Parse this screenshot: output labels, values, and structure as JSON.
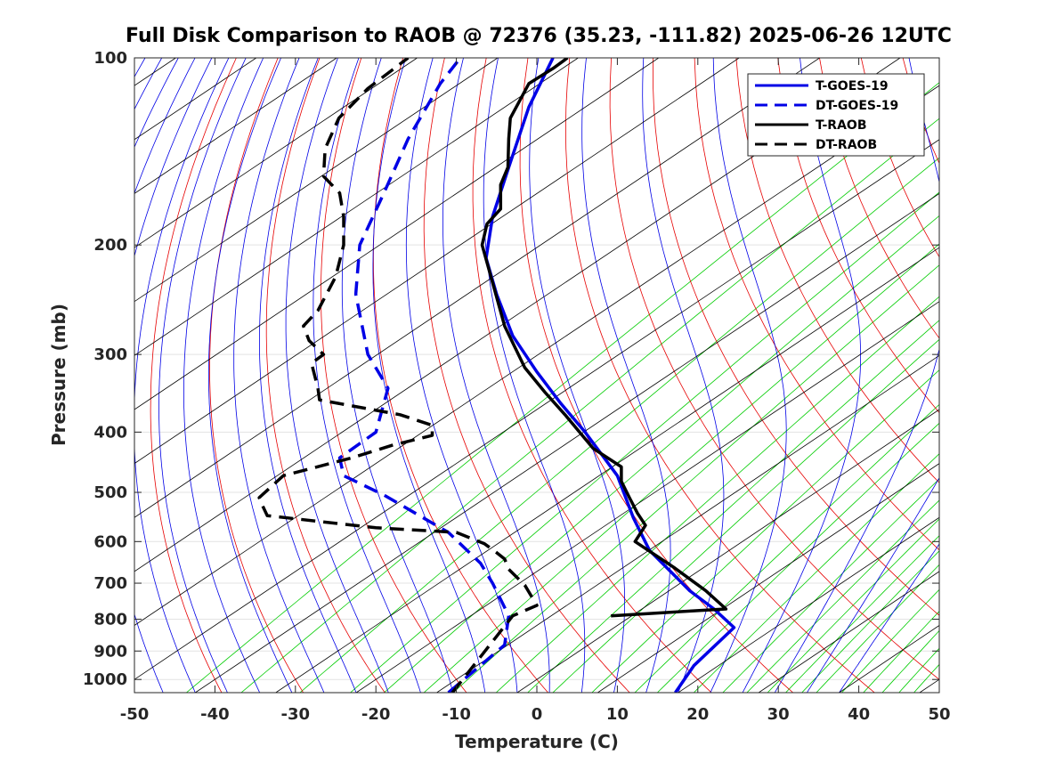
{
  "chart_data": {
    "type": "line",
    "title": "Full Disk Comparison to RAOB @ 72376 (35.23, -111.82) 2025-06-26 12UTC",
    "xlabel": "Temperature (C)",
    "ylabel": "Pressure (mb)",
    "xlim": [
      -50,
      50
    ],
    "ylim": [
      1050,
      100
    ],
    "y_scale": "log",
    "grid": true,
    "legend_position": "top-right",
    "x_ticks": [
      -50,
      -40,
      -30,
      -20,
      -10,
      0,
      10,
      20,
      30,
      40,
      50
    ],
    "y_ticks": [
      100,
      200,
      300,
      400,
      500,
      600,
      700,
      800,
      900,
      1000
    ],
    "colors": {
      "isotherm": "#000000",
      "dry_adiabat": "#e60000",
      "moist_adiabat": "#0000e6",
      "mixing_ratio": "#00cc00",
      "goes": "#0000e6",
      "raob": "#000000"
    },
    "series": [
      {
        "name": "T-GOES-19",
        "color": "#0000e6",
        "dash": "solid",
        "points": [
          [
            17.2,
            1050
          ],
          [
            19.5,
            950
          ],
          [
            24.5,
            825
          ],
          [
            22,
            770
          ],
          [
            19,
            720
          ],
          [
            14,
            620
          ],
          [
            12,
            550
          ],
          [
            10,
            470
          ],
          [
            6,
            400
          ],
          [
            3,
            360
          ],
          [
            0,
            320
          ],
          [
            -3,
            280
          ],
          [
            -5,
            240
          ],
          [
            -6.3,
            210
          ],
          [
            -5.5,
            180
          ],
          [
            -3.5,
            150
          ],
          [
            -1,
            120
          ],
          [
            2,
            100
          ]
        ]
      },
      {
        "name": "DT-GOES-19",
        "color": "#0000e6",
        "dash": "dashed",
        "points": [
          [
            -11,
            1050
          ],
          [
            -4,
            880
          ],
          [
            -3.5,
            790
          ],
          [
            -5.5,
            700
          ],
          [
            -7,
            650
          ],
          [
            -11,
            580
          ],
          [
            -19,
            505
          ],
          [
            -24,
            470
          ],
          [
            -24.5,
            440
          ],
          [
            -20,
            400
          ],
          [
            -18.5,
            340
          ],
          [
            -21,
            300
          ],
          [
            -22.5,
            240
          ],
          [
            -22,
            200
          ],
          [
            -19,
            165
          ],
          [
            -16,
            135
          ],
          [
            -12,
            110
          ],
          [
            -9.5,
            100
          ]
        ]
      },
      {
        "name": "T-RAOB",
        "color": "#000000",
        "dash": "solid",
        "points": [
          [
            9.2,
            790
          ],
          [
            23.5,
            770
          ],
          [
            21,
            720
          ],
          [
            17,
            660
          ],
          [
            12.2,
            600
          ],
          [
            13.5,
            565
          ],
          [
            12.5,
            540
          ],
          [
            11.5,
            510
          ],
          [
            10.5,
            480
          ],
          [
            10.5,
            455
          ],
          [
            7,
            425
          ],
          [
            3.5,
            375
          ],
          [
            1,
            345
          ],
          [
            -1.5,
            315
          ],
          [
            -4,
            270
          ],
          [
            -6.8,
            200
          ],
          [
            -6.2,
            185
          ],
          [
            -4.5,
            175
          ],
          [
            -4.5,
            160
          ],
          [
            -3.6,
            150
          ],
          [
            -3.5,
            135
          ],
          [
            -3.3,
            125
          ],
          [
            -1,
            110
          ],
          [
            2,
            104
          ],
          [
            3.8,
            100
          ]
        ]
      },
      {
        "name": "DT-RAOB",
        "color": "#000000",
        "dash": "dashed",
        "points": [
          [
            -10.5,
            1050
          ],
          [
            -3,
            790
          ],
          [
            0,
            760
          ],
          [
            -1.5,
            705
          ],
          [
            -3.5,
            665
          ],
          [
            -4,
            640
          ],
          [
            -5,
            625
          ],
          [
            -6.5,
            605
          ],
          [
            -10,
            580
          ],
          [
            -20,
            570
          ],
          [
            -33.5,
            545
          ],
          [
            -34,
            528
          ],
          [
            -34.5,
            510
          ],
          [
            -31.5,
            470
          ],
          [
            -23,
            440
          ],
          [
            -18,
            420
          ],
          [
            -13,
            405
          ],
          [
            -13,
            390
          ],
          [
            -17,
            375
          ],
          [
            -27,
            355
          ],
          [
            -27.2,
            340
          ],
          [
            -28,
            310
          ],
          [
            -26.5,
            300
          ],
          [
            -28.3,
            285
          ],
          [
            -29,
            270
          ],
          [
            -27.2,
            255
          ],
          [
            -25,
            225
          ],
          [
            -24,
            200
          ],
          [
            -24,
            180
          ],
          [
            -24.5,
            165
          ],
          [
            -26.5,
            155
          ],
          [
            -26.3,
            140
          ],
          [
            -24.6,
            125
          ],
          [
            -21,
            112
          ],
          [
            -16,
            100
          ]
        ]
      }
    ]
  }
}
